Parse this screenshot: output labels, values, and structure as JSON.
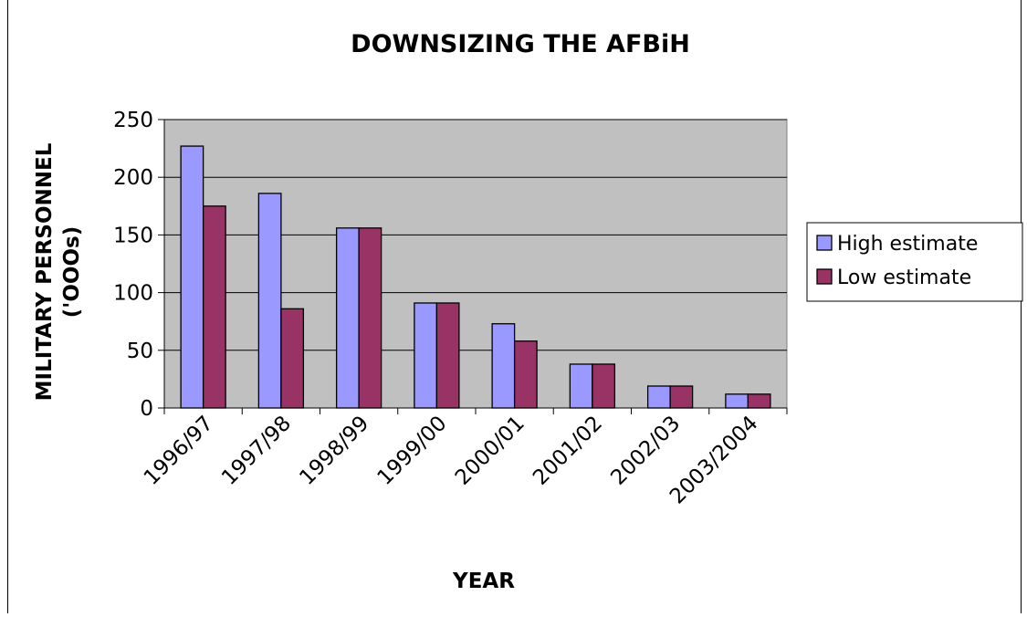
{
  "chart_data": {
    "type": "bar",
    "title": "DOWNSIZING THE AFBiH",
    "xlabel": "YEAR",
    "ylabel": [
      "MILITARY PERSONNEL",
      "('OOOs)"
    ],
    "categories": [
      "1996/97",
      "1997/98",
      "1998/99",
      "1999/00",
      "2000/01",
      "2001/02",
      "2002/03",
      "2003/2004"
    ],
    "series": [
      {
        "name": "High estimate",
        "color": "#9999ff",
        "values": [
          227,
          186,
          156,
          91,
          73,
          38,
          19,
          12
        ]
      },
      {
        "name": "Low estimate",
        "color": "#993366",
        "values": [
          175,
          86,
          156,
          91,
          58,
          38,
          19,
          12
        ]
      }
    ],
    "ylim": [
      0,
      250
    ],
    "yticks": [
      0,
      50,
      100,
      150,
      200,
      250
    ],
    "grid": true,
    "plot_background": "#c0c0c0",
    "legend_position": "right"
  }
}
